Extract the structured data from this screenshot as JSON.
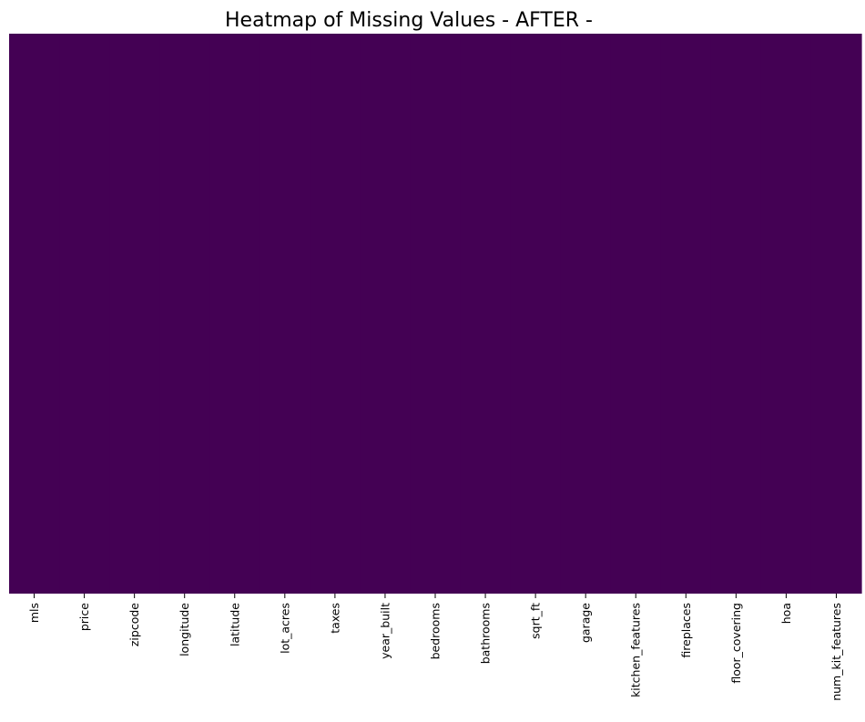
{
  "chart_data": {
    "type": "heatmap",
    "title": "Heatmap of Missing Values - AFTER -",
    "xlabel": "",
    "ylabel": "",
    "columns": [
      "mls",
      "price",
      "zipcode",
      "longitude",
      "latitude",
      "lot_acres",
      "taxes",
      "year_built",
      "bedrooms",
      "bathrooms",
      "sqrt_ft",
      "garage",
      "kitchen_features",
      "fireplaces",
      "floor_covering",
      "hoa",
      "num_kit_features"
    ],
    "missing_values": [
      0,
      0,
      0,
      0,
      0,
      0,
      0,
      0,
      0,
      0,
      0,
      0,
      0,
      0,
      0,
      0,
      0
    ],
    "y_tick_labels_shown": false,
    "colorbar_shown": false,
    "colormap": "viridis",
    "fill_color": "#440154"
  }
}
